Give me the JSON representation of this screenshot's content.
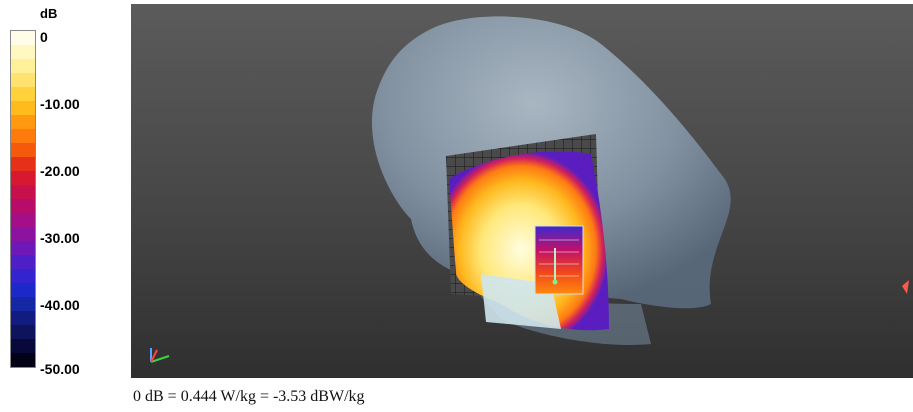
{
  "legend": {
    "unit": "dB",
    "ticks": [
      "0",
      "-10.00",
      "-20.00",
      "-30.00",
      "-40.00",
      "-50.00"
    ],
    "colors": [
      "#fffde7",
      "#fff8c0",
      "#fff09a",
      "#ffe36e",
      "#ffd23c",
      "#ffbb1c",
      "#ff9a10",
      "#ff7a0c",
      "#f55a0c",
      "#e63018",
      "#d61830",
      "#c8104c",
      "#b80c6a",
      "#a40e88",
      "#8c12a0",
      "#6e18b8",
      "#4e1ec6",
      "#3424d0",
      "#1c28c8",
      "#1428a6",
      "#121c80",
      "#0e145c",
      "#08093a",
      "#020214"
    ]
  },
  "caption": "0 dB = 0.444 W/kg = -3.53 dBW/kg"
}
